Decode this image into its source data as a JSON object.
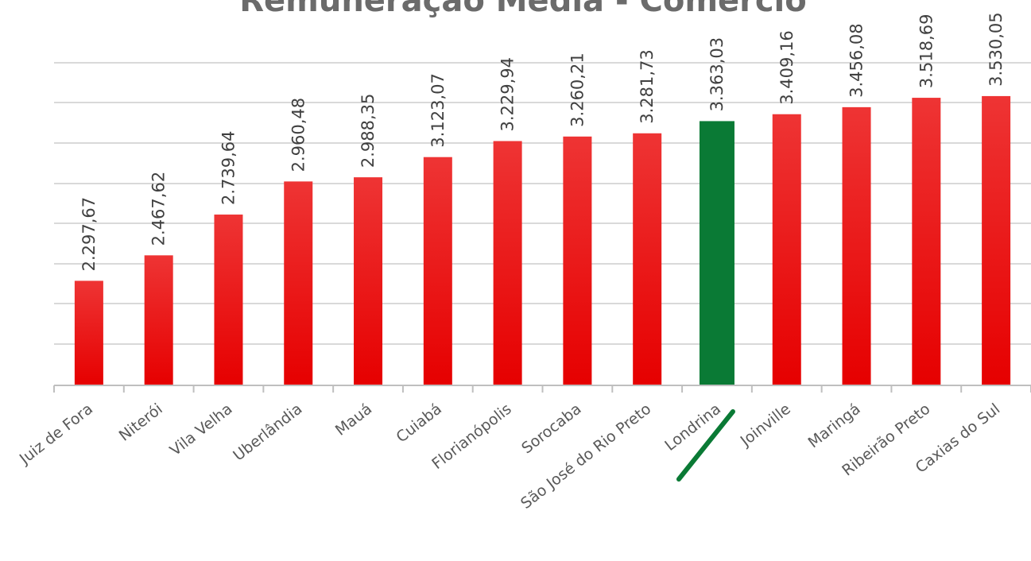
{
  "chart_data": {
    "type": "bar",
    "title": "Remuneração Média - Comércio",
    "xlabel": "",
    "ylabel": "",
    "ylim": [
      0,
      3500
    ],
    "grid": true,
    "categories": [
      "Juiz de Fora",
      "Niterói",
      "Vila Velha",
      "Uberlândia",
      "Mauá",
      "Cuiabá",
      "Florianópolis",
      "Sorocaba",
      "São José do Rio Preto",
      "Londrina",
      "Joinville",
      "Maringá",
      "Ribeirão Preto",
      "Caxias do Sul"
    ],
    "values": [
      2297.67,
      2467.62,
      2739.64,
      2960.48,
      2988.35,
      3123.07,
      3229.94,
      3260.21,
      3281.73,
      3363.03,
      3409.16,
      3456.08,
      3518.69,
      3530.05
    ],
    "data_labels": [
      "2.297,67",
      "2.467,62",
      "2.739,64",
      "2.960,48",
      "2.988,35",
      "3.123,07",
      "3.229,94",
      "3.260,21",
      "3.281,73",
      "3.363,03",
      "3.409,16",
      "3.456,08",
      "3.518,69",
      "3.530,05"
    ],
    "highlight": "Londrina",
    "colors": {
      "bar": "#e60000",
      "bar_top": "#ee3434",
      "highlight": "#0a7a35",
      "underline": "#0a7a35",
      "grid": "#d9d9d9",
      "title": "#6b6b6b",
      "label": "#404040",
      "category": "#595959"
    }
  }
}
